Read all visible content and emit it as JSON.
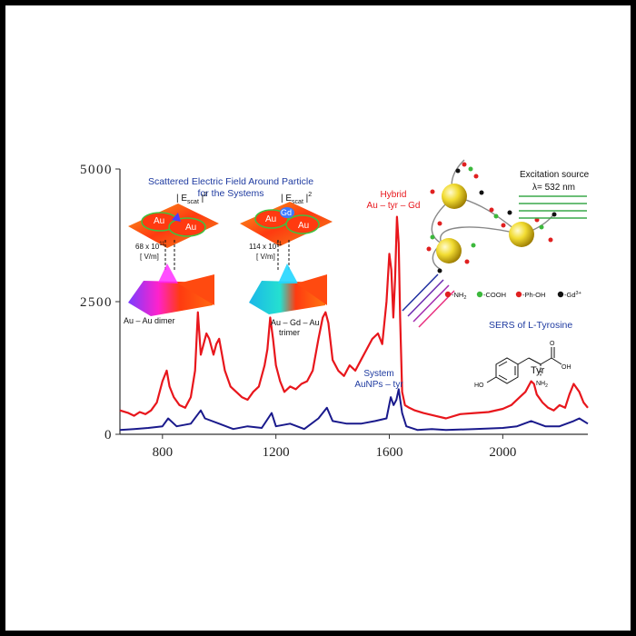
{
  "chart_data": {
    "type": "line",
    "xlabel": "",
    "ylabel": "",
    "xlim": [
      650,
      2300
    ],
    "ylim": [
      0,
      5000
    ],
    "xticks": [
      800,
      1200,
      1600,
      2000
    ],
    "yticks": [
      0,
      2500,
      5000
    ],
    "grid": false,
    "series": [
      {
        "name": "Hybrid Au - tyr - Gd",
        "color": "#e8161c",
        "x": [
          650,
          680,
          700,
          720,
          740,
          760,
          780,
          800,
          815,
          825,
          840,
          860,
          880,
          900,
          915,
          925,
          935,
          945,
          955,
          965,
          980,
          990,
          1000,
          1020,
          1040,
          1060,
          1080,
          1100,
          1120,
          1140,
          1160,
          1170,
          1180,
          1190,
          1200,
          1215,
          1230,
          1250,
          1270,
          1290,
          1310,
          1330,
          1350,
          1365,
          1375,
          1385,
          1400,
          1420,
          1440,
          1460,
          1480,
          1500,
          1520,
          1540,
          1560,
          1575,
          1590,
          1600,
          1607,
          1614,
          1620,
          1627,
          1633,
          1638,
          1645,
          1655,
          1670,
          1690,
          1720,
          1760,
          1800,
          1850,
          1900,
          1950,
          2000,
          2030,
          2060,
          2080,
          2100,
          2110,
          2120,
          2140,
          2160,
          2180,
          2200,
          2220,
          2235,
          2250,
          2270,
          2285,
          2300
        ],
        "y": [
          450,
          400,
          350,
          420,
          380,
          450,
          600,
          1000,
          1200,
          900,
          700,
          550,
          500,
          700,
          1200,
          2300,
          1500,
          1700,
          1900,
          1800,
          1500,
          1700,
          1800,
          1200,
          900,
          800,
          700,
          650,
          800,
          900,
          1300,
          1600,
          2200,
          1800,
          1300,
          1000,
          800,
          900,
          850,
          950,
          1000,
          1200,
          1800,
          2200,
          2300,
          2100,
          1400,
          1200,
          1100,
          1300,
          1200,
          1400,
          1600,
          1800,
          1900,
          1700,
          2500,
          3400,
          3100,
          2200,
          2900,
          4100,
          3600,
          2200,
          800,
          550,
          500,
          450,
          400,
          350,
          300,
          380,
          400,
          420,
          480,
          550,
          700,
          800,
          1000,
          950,
          750,
          600,
          500,
          450,
          550,
          500,
          750,
          950,
          800,
          600,
          500
        ]
      },
      {
        "name": "System AuNPs - tyr",
        "color": "#1a1a8c",
        "x": [
          650,
          700,
          750,
          800,
          820,
          850,
          900,
          935,
          950,
          1000,
          1050,
          1100,
          1150,
          1185,
          1200,
          1250,
          1300,
          1350,
          1380,
          1400,
          1450,
          1500,
          1550,
          1590,
          1605,
          1615,
          1625,
          1633,
          1645,
          1660,
          1700,
          1750,
          1800,
          1900,
          2000,
          2050,
          2100,
          2150,
          2200,
          2250,
          2270,
          2300
        ],
        "y": [
          80,
          100,
          120,
          150,
          300,
          150,
          200,
          450,
          300,
          200,
          100,
          150,
          120,
          400,
          150,
          200,
          100,
          300,
          500,
          250,
          200,
          200,
          250,
          300,
          700,
          550,
          650,
          850,
          400,
          150,
          80,
          100,
          80,
          100,
          120,
          150,
          250,
          150,
          150,
          250,
          300,
          200
        ]
      }
    ]
  },
  "annotations": {
    "scatter_title_line1": "Scattered Electric Field Around Particle",
    "scatter_title_line2": "for the Systems",
    "escat_label": "| E",
    "escat_sub": "scat",
    "escat_suffix": " |",
    "escat_sup": "2",
    "au_label": "Au",
    "gd_label": "Gd",
    "field1_value": "68 x 10",
    "field1_exp": "11",
    "field2_value": "114 x 10",
    "field2_exp": "11",
    "field_unit": "[ V/m]",
    "dimer_label": "Au – Au dimer",
    "trimer_line1": "Au – Gd – Au",
    "trimer_line2": "trimer",
    "hybrid_line1": "Hybrid",
    "hybrid_line2": "Au – tyr – Gd",
    "system_line1": "System",
    "system_line2": "AuNPs – tyr",
    "excitation_title": "Excitation source",
    "excitation_lambda": "λ= 532 nm",
    "sers_title": "SERS of L-Tyrosine",
    "tyr_label": "Tyr",
    "oh_label": "OH",
    "o_label": "O",
    "ho_label": "HO",
    "nh2_label": "NH",
    "nh2_sub": "2"
  },
  "legend": [
    {
      "label": "-NH",
      "sub": "2",
      "color": "#e02020"
    },
    {
      "label": "-COOH",
      "sub": "",
      "color": "#3cb83c"
    },
    {
      "label": "-Ph-OH",
      "sub": "",
      "color": "#e02020"
    },
    {
      "label": "-Gd",
      "sup": "3+",
      "color": "#111111"
    }
  ]
}
